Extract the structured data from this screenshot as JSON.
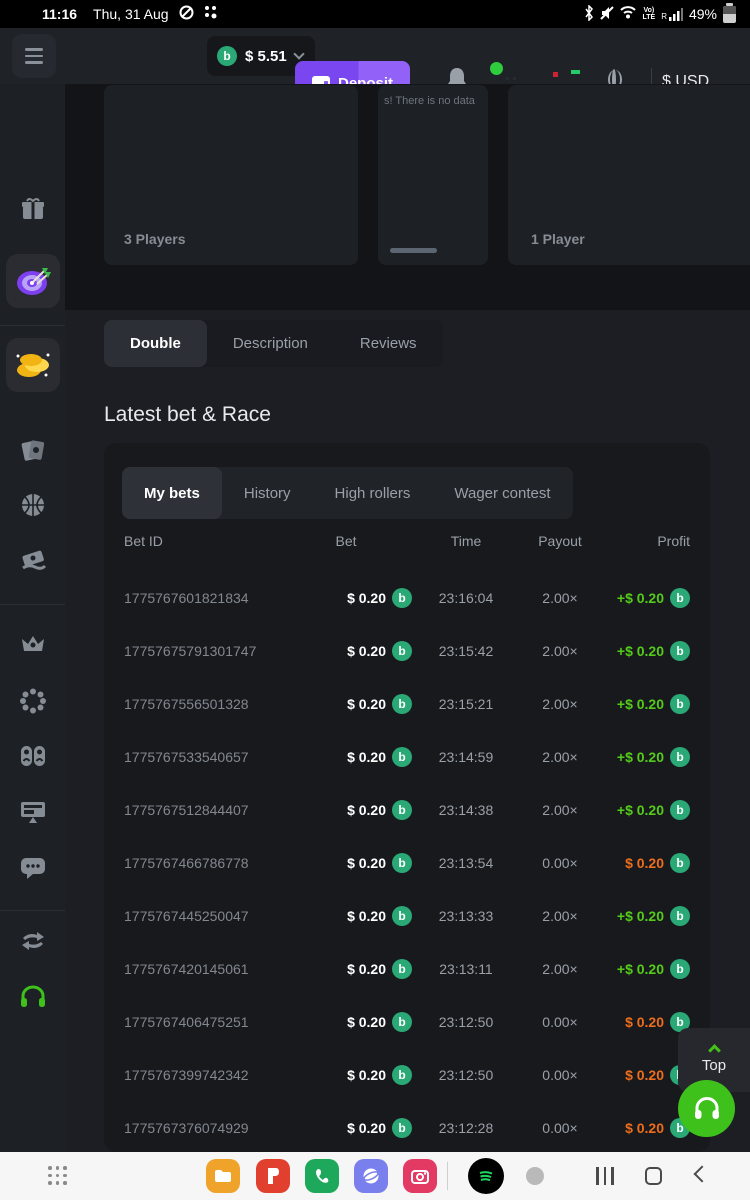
{
  "status_bar": {
    "time": "11:16",
    "date": "Thu, 31 Aug",
    "battery_pct": "49%",
    "volte_label": "VoLTE",
    "roaming_label": "R"
  },
  "header": {
    "balance": "$ 5.51",
    "deposit_label": "Deposit",
    "currency": "$ USD",
    "coin_symbol": "b"
  },
  "sidebar": {
    "items": [
      "gift",
      "lottery-target",
      "coins",
      "casino-cards",
      "sports",
      "lottery-ticket",
      "vip-crown",
      "bonus-ring",
      "affiliate",
      "provider-monitor",
      "forum-chat",
      "swap",
      "support-headset"
    ]
  },
  "game_section": {
    "card_left_label": "3 Players",
    "card_mid_text": "s! There is no data",
    "card_right_label": "1 Player"
  },
  "tabs": {
    "items": [
      {
        "label": "Double",
        "active": true
      },
      {
        "label": "Description",
        "active": false
      },
      {
        "label": "Reviews",
        "active": false
      }
    ]
  },
  "section_title": "Latest bet & Race",
  "bets": {
    "tabs": [
      {
        "label": "My bets",
        "active": true
      },
      {
        "label": "History",
        "active": false
      },
      {
        "label": "High rollers",
        "active": false
      },
      {
        "label": "Wager contest",
        "active": false
      }
    ],
    "columns": [
      "Bet ID",
      "Bet",
      "Time",
      "Payout",
      "Profit"
    ],
    "coin_symbol": "b",
    "rows": [
      {
        "id": "1775767601821834",
        "bet": "$ 0.20",
        "time": "23:16:04",
        "payout": "2.00×",
        "profit": "+$ 0.20",
        "result": "win"
      },
      {
        "id": "17757675791301747",
        "bet": "$ 0.20",
        "time": "23:15:42",
        "payout": "2.00×",
        "profit": "+$ 0.20",
        "result": "win"
      },
      {
        "id": "1775767556501328",
        "bet": "$ 0.20",
        "time": "23:15:21",
        "payout": "2.00×",
        "profit": "+$ 0.20",
        "result": "win"
      },
      {
        "id": "1775767533540657",
        "bet": "$ 0.20",
        "time": "23:14:59",
        "payout": "2.00×",
        "profit": "+$ 0.20",
        "result": "win"
      },
      {
        "id": "1775767512844407",
        "bet": "$ 0.20",
        "time": "23:14:38",
        "payout": "2.00×",
        "profit": "+$ 0.20",
        "result": "win"
      },
      {
        "id": "1775767466786778",
        "bet": "$ 0.20",
        "time": "23:13:54",
        "payout": "0.00×",
        "profit": "$ 0.20",
        "result": "loss"
      },
      {
        "id": "1775767445250047",
        "bet": "$ 0.20",
        "time": "23:13:33",
        "payout": "2.00×",
        "profit": "+$ 0.20",
        "result": "win"
      },
      {
        "id": "1775767420145061",
        "bet": "$ 0.20",
        "time": "23:13:11",
        "payout": "2.00×",
        "profit": "+$ 0.20",
        "result": "win"
      },
      {
        "id": "1775767406475251",
        "bet": "$ 0.20",
        "time": "23:12:50",
        "payout": "0.00×",
        "profit": "$ 0.20",
        "result": "loss"
      },
      {
        "id": "1775767399742342",
        "bet": "$ 0.20",
        "time": "23:12:50",
        "payout": "0.00×",
        "profit": "$ 0.20",
        "result": "loss"
      },
      {
        "id": "1775767376074929",
        "bet": "$ 0.20",
        "time": "23:12:28",
        "payout": "0.00×",
        "profit": "$ 0.20",
        "result": "loss"
      }
    ]
  },
  "floating": {
    "top_label": "Top"
  },
  "colors": {
    "accent_purple": "#8350f2",
    "coin_green": "#2aa876",
    "win_green": "#55cb19",
    "loss_orange": "#ed6d1a",
    "support_green": "#3fc11c",
    "panel_dark": "#17191d",
    "page_bg": "#1c1e23"
  }
}
